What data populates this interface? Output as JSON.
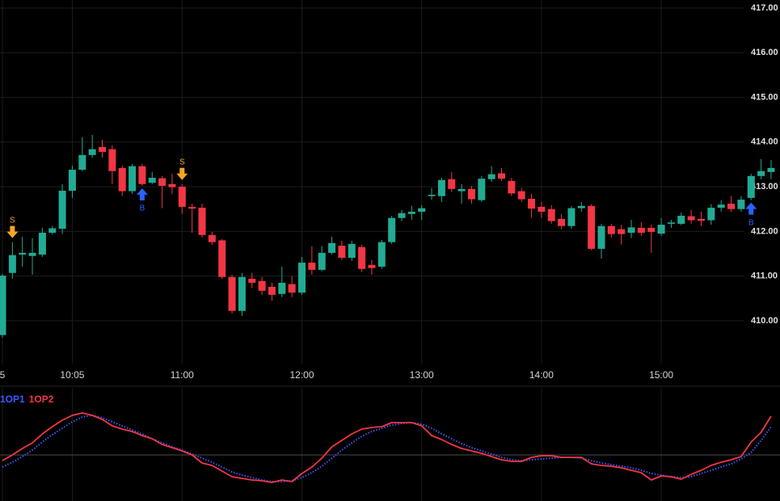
{
  "chart_data": [
    {
      "type": "candlestick",
      "categories": [
        "5",
        null,
        null,
        null,
        null,
        null,
        null,
        "10:05",
        null,
        null,
        null,
        null,
        null,
        null,
        null,
        null,
        null,
        null,
        "11:00",
        null,
        null,
        null,
        null,
        null,
        null,
        null,
        null,
        null,
        null,
        null,
        "12:00",
        null,
        null,
        null,
        null,
        null,
        null,
        null,
        null,
        null,
        null,
        null,
        "13:00",
        null,
        null,
        null,
        null,
        null,
        null,
        null,
        null,
        null,
        null,
        null,
        "14:00",
        null,
        null,
        null,
        null,
        null,
        null,
        null,
        null,
        null,
        null,
        null,
        "15:00",
        null,
        null,
        null,
        null,
        null,
        null,
        null,
        null,
        null,
        null,
        null
      ],
      "open": [
        409.68,
        411.07,
        411.48,
        411.45,
        411.48,
        411.97,
        412.06,
        412.91,
        413.38,
        413.71,
        413.89,
        413.84,
        413.42,
        412.9,
        413.46,
        413.09,
        413.19,
        413.06,
        413.0,
        412.55,
        412.53,
        411.92,
        411.8,
        410.98,
        410.22,
        410.94,
        410.89,
        410.76,
        410.6,
        410.82,
        410.63,
        411.3,
        411.14,
        411.52,
        411.68,
        411.41,
        411.65,
        411.25,
        411.21,
        411.76,
        412.3,
        412.39,
        412.44,
        412.79,
        412.79,
        413.17,
        412.9,
        412.95,
        412.7,
        413.17,
        413.3,
        413.13,
        412.9,
        412.73,
        412.55,
        412.5,
        412.28,
        412.12,
        412.52,
        412.57,
        411.61,
        412.12,
        412.05,
        411.97,
        412.08,
        412.08,
        411.95,
        412.17,
        412.17,
        412.34,
        412.28,
        412.25,
        412.53,
        412.62,
        412.5,
        412.75,
        413.24,
        413.33
      ],
      "high": [
        411.05,
        411.76,
        411.88,
        411.85,
        412.08,
        412.12,
        413.06,
        413.47,
        414.11,
        414.16,
        414.05,
        413.93,
        413.47,
        413.51,
        413.51,
        413.33,
        413.24,
        413.29,
        413.06,
        412.62,
        412.62,
        411.99,
        411.83,
        411.03,
        411.07,
        411.07,
        410.98,
        410.85,
        411.21,
        411.0,
        411.43,
        411.67,
        411.67,
        411.88,
        411.79,
        411.79,
        411.7,
        411.36,
        411.81,
        412.35,
        412.48,
        412.57,
        412.59,
        412.97,
        413.2,
        413.33,
        413.06,
        413.02,
        413.24,
        413.46,
        413.42,
        413.2,
        412.97,
        412.84,
        412.66,
        412.59,
        412.39,
        412.57,
        412.66,
        412.61,
        412.17,
        412.17,
        412.15,
        412.26,
        412.21,
        412.15,
        412.3,
        412.26,
        412.42,
        412.48,
        412.44,
        412.61,
        412.7,
        412.79,
        412.79,
        413.29,
        413.62,
        413.6
      ],
      "low": [
        409.62,
        410.94,
        411.21,
        411.03,
        411.43,
        411.94,
        411.94,
        412.75,
        413.35,
        413.65,
        413.65,
        413.06,
        412.79,
        412.84,
        413.02,
        413.06,
        412.52,
        412.84,
        412.39,
        411.97,
        411.86,
        411.7,
        410.94,
        410.16,
        410.11,
        410.73,
        410.58,
        410.45,
        410.53,
        410.53,
        410.58,
        411.03,
        411.11,
        411.48,
        411.36,
        411.34,
        411.09,
        411.03,
        411.16,
        411.72,
        412.23,
        412.26,
        412.26,
        412.71,
        412.66,
        412.88,
        412.62,
        412.62,
        412.66,
        413.11,
        413.13,
        412.79,
        412.66,
        412.3,
        412.3,
        412.17,
        412.05,
        412.06,
        412.44,
        411.58,
        411.39,
        411.86,
        411.7,
        411.85,
        411.9,
        411.52,
        411.9,
        412.08,
        412.14,
        412.17,
        412.12,
        412.15,
        412.44,
        412.44,
        412.44,
        412.7,
        413.17,
        413.17
      ],
      "close": [
        411.01,
        411.47,
        411.52,
        411.52,
        411.97,
        412.07,
        412.91,
        413.38,
        413.71,
        413.84,
        413.78,
        413.35,
        412.9,
        413.46,
        413.06,
        413.2,
        413.02,
        412.99,
        412.55,
        412.51,
        411.92,
        411.76,
        410.98,
        410.22,
        410.98,
        410.85,
        410.67,
        410.58,
        410.85,
        410.63,
        411.3,
        411.14,
        411.52,
        411.74,
        411.41,
        411.72,
        411.16,
        411.18,
        411.76,
        412.3,
        412.41,
        412.44,
        412.52,
        412.82,
        413.15,
        412.95,
        412.95,
        412.72,
        413.18,
        413.28,
        413.18,
        412.85,
        412.72,
        412.51,
        412.44,
        412.23,
        412.12,
        412.52,
        412.57,
        411.61,
        412.12,
        411.94,
        411.94,
        412.09,
        411.97,
        411.99,
        412.15,
        412.2,
        412.35,
        412.25,
        412.24,
        412.53,
        412.6,
        412.5,
        412.71,
        413.24,
        413.35,
        413.42
      ],
      "signals": [
        null,
        "S",
        null,
        null,
        null,
        null,
        null,
        null,
        null,
        null,
        null,
        null,
        null,
        null,
        "B",
        null,
        null,
        null,
        "S",
        null,
        null,
        null,
        null,
        null,
        null,
        null,
        null,
        null,
        null,
        null,
        null,
        null,
        null,
        null,
        null,
        null,
        null,
        null,
        null,
        null,
        null,
        null,
        null,
        null,
        null,
        null,
        null,
        null,
        null,
        null,
        null,
        null,
        null,
        null,
        null,
        null,
        null,
        null,
        null,
        null,
        null,
        null,
        null,
        null,
        null,
        null,
        null,
        null,
        null,
        null,
        null,
        null,
        null,
        null,
        null,
        "B",
        null,
        null
      ],
      "signal_colors": {
        "S": "#f5a623",
        "B": "#2962ff"
      },
      "up_color": "#22ab94",
      "down_color": "#f23645",
      "ylim": [
        409.04,
        417.18
      ],
      "yticks": [
        {
          "value": 410,
          "label": "410.00"
        },
        {
          "value": 411,
          "label": "411.00"
        },
        {
          "value": 412,
          "label": "412.00"
        },
        {
          "value": 413,
          "label": "413.00"
        },
        {
          "value": 414,
          "label": "414.00"
        },
        {
          "value": 415,
          "label": "415.00"
        },
        {
          "value": 416,
          "label": "416.00"
        },
        {
          "value": 417,
          "label": "417.00"
        }
      ],
      "grid": true
    },
    {
      "type": "line",
      "series": [
        {
          "name": "1OP1",
          "color": "#3d5afe",
          "style": "dotted",
          "values": [
            -15,
            -9,
            -2,
            6,
            16,
            25,
            33,
            41,
            47,
            49,
            46,
            41,
            36,
            31,
            26,
            20,
            15,
            10,
            6,
            1,
            -4,
            -9,
            -15,
            -21,
            -25,
            -28,
            -31,
            -33,
            -33,
            -32,
            -28,
            -22,
            -14,
            -4,
            6,
            15,
            23,
            29,
            33,
            37,
            39,
            40,
            38,
            33,
            26,
            20,
            14,
            9,
            5,
            1,
            -3,
            -6,
            -7,
            -6,
            -5,
            -4,
            -3,
            -3,
            -4,
            -7,
            -10,
            -12,
            -14,
            -16,
            -19,
            -23,
            -25,
            -27,
            -28,
            -27,
            -23,
            -19,
            -15,
            -11,
            -5,
            3,
            18,
            35
          ]
        },
        {
          "name": "1OP2",
          "color": "#f23645",
          "style": "solid",
          "values": [
            -7,
            0,
            8,
            15,
            26,
            35,
            43,
            49,
            52,
            49,
            44,
            36,
            32,
            29,
            24,
            20,
            13,
            9,
            5,
            0,
            -10,
            -13,
            -20,
            -27,
            -29,
            -31,
            -32,
            -34,
            -31,
            -33,
            -23,
            -15,
            -4,
            10,
            18,
            26,
            32,
            34,
            35,
            40,
            40,
            40,
            36,
            24,
            19,
            13,
            8,
            5,
            2,
            -2,
            -6,
            -8,
            -8,
            -3,
            -1,
            -1,
            -3,
            -3,
            -3,
            -11,
            -13,
            -14,
            -16,
            -19,
            -22,
            -31,
            -26,
            -27,
            -30,
            -24,
            -19,
            -13,
            -9,
            -6,
            -2,
            16,
            28,
            48
          ]
        }
      ],
      "ylim": [
        -50,
        60
      ],
      "reference_line": 0
    }
  ]
}
